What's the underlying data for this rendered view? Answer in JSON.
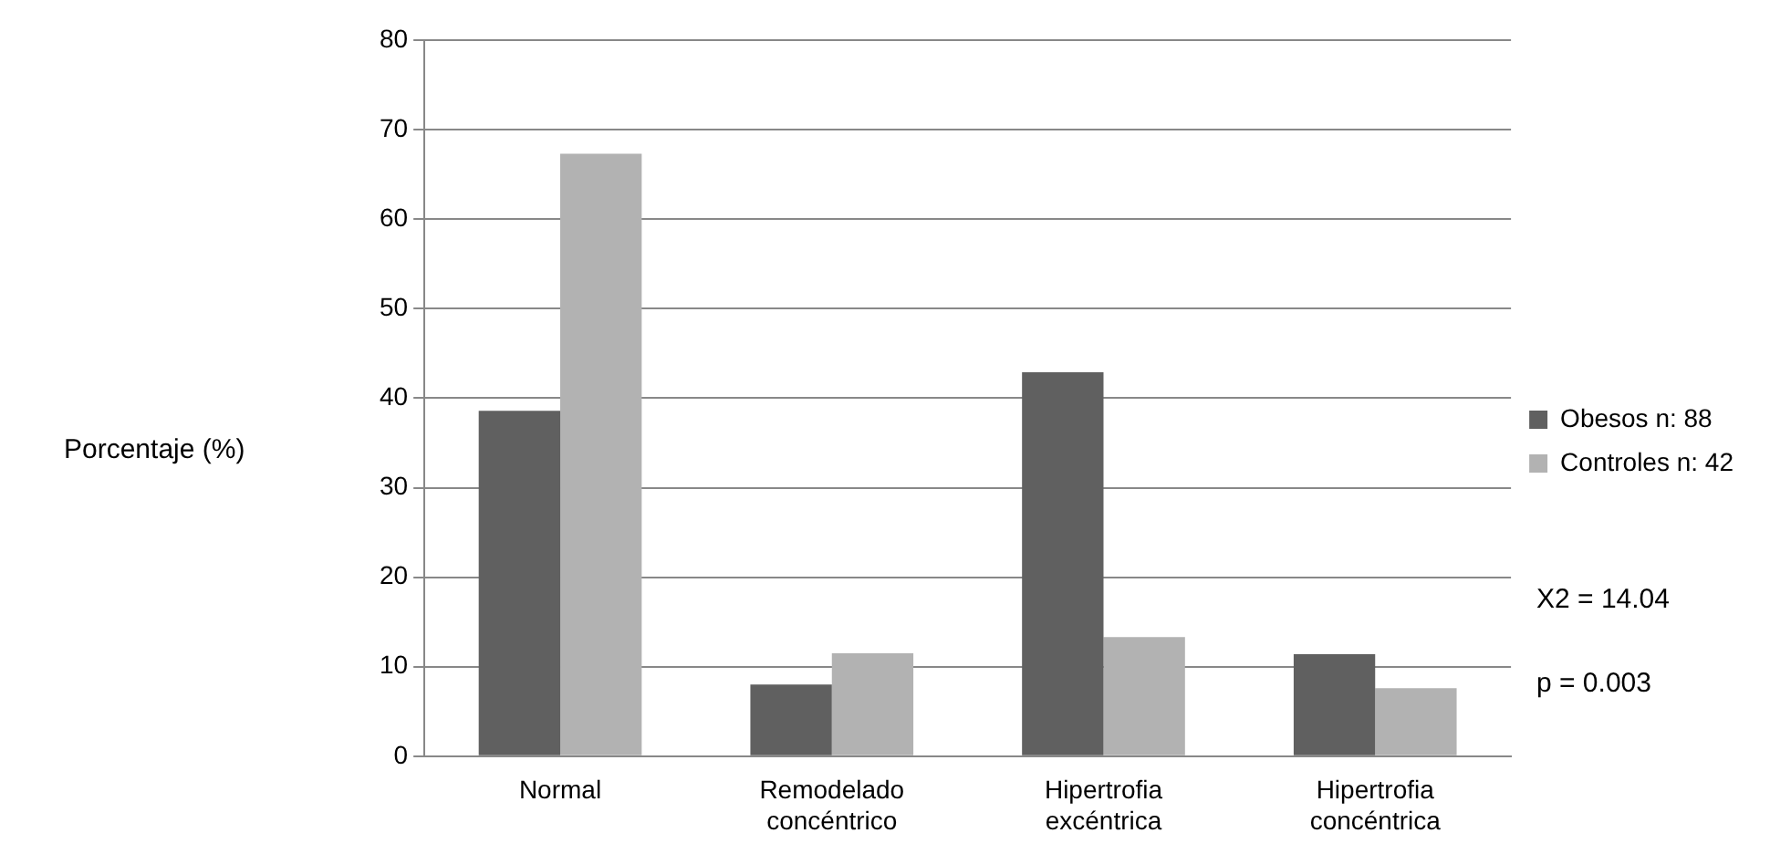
{
  "chart_data": {
    "type": "bar",
    "ylabel": "Porcentaje (%)",
    "categories": [
      "Normal",
      "Remodelado concéntrico",
      "Hipertrofia excéntrica",
      "Hipertrofia concéntrica"
    ],
    "series": [
      {
        "name": "Obesos n: 88",
        "color": "#606060",
        "values": [
          38.6,
          8.0,
          42.9,
          11.4
        ]
      },
      {
        "name": "Controles n: 42",
        "color": "#b2b2b2",
        "values": [
          67.3,
          11.5,
          13.3,
          7.6
        ]
      }
    ],
    "ylim": [
      0,
      80
    ],
    "yticks": [
      0,
      10,
      20,
      30,
      40,
      50,
      60,
      70,
      80
    ],
    "grid": "y",
    "legend": "right",
    "annotations": [
      "X2 = 14.04",
      "p = 0.003"
    ]
  }
}
